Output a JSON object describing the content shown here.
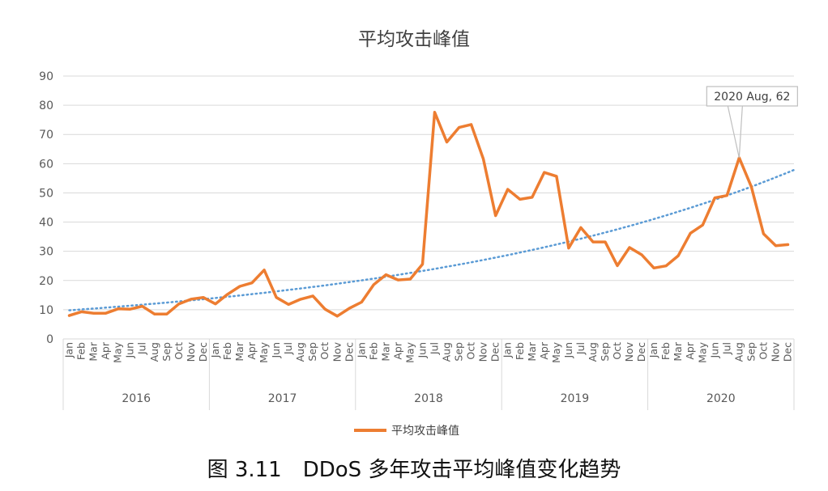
{
  "caption": "图 3.11　DDoS 多年攻击平均峰值变化趋势",
  "colors": {
    "series": "#ED7D31",
    "trendline": "#5B9BD5",
    "grid": "#d9d9d9",
    "axis_text": "#595959"
  },
  "chart_data": {
    "type": "line",
    "title": "平均攻击峰值",
    "ylim": [
      0,
      90
    ],
    "yticks": [
      0,
      10,
      20,
      30,
      40,
      50,
      60,
      70,
      80,
      90
    ],
    "grid": "horizontal",
    "legend_position": "bottom",
    "months": [
      "Jan",
      "Feb",
      "Mar",
      "Apr",
      "May",
      "Jun",
      "Jul",
      "Aug",
      "Sep",
      "Oct",
      "Nov",
      "Dec"
    ],
    "years": [
      "2016",
      "2017",
      "2018",
      "2019",
      "2020"
    ],
    "series": [
      {
        "name": "平均攻击峰值",
        "values": [
          8,
          9.3,
          8.8,
          8.8,
          10.3,
          10.2,
          11.2,
          8.5,
          8.5,
          12,
          13.6,
          14.2,
          12,
          15.3,
          18,
          19.2,
          23.6,
          14.2,
          11.8,
          13.6,
          14.7,
          10.2,
          7.8,
          10.5,
          12.6,
          18.6,
          22,
          20.2,
          20.5,
          25.6,
          77.6,
          67.4,
          72.4,
          73.4,
          61.6,
          42.2,
          51.2,
          47.8,
          48.5,
          57,
          55.7,
          31.1,
          38.1,
          33.2,
          33.2,
          25.1,
          31.3,
          28.8,
          24.3,
          25,
          28.5,
          36.2,
          39,
          48.3,
          49.1,
          62,
          52.1,
          36,
          31.9,
          32.3
        ]
      }
    ],
    "trendline": {
      "type": "exponential",
      "start": 9.8,
      "end": 57
    },
    "annotation": {
      "text": "2020 Aug, 62",
      "year": "2020",
      "month": "Aug",
      "value": 62
    }
  }
}
